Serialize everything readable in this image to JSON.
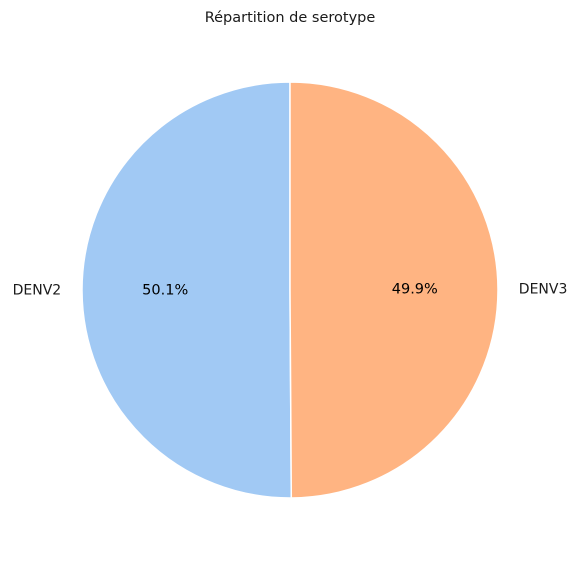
{
  "chart_data": {
    "type": "pie",
    "title": "Répartition de serotype",
    "labels": [
      "DENV2",
      "DENV3"
    ],
    "values": [
      50.1,
      49.9
    ],
    "percent_labels": [
      "50.1%",
      "49.9%"
    ],
    "colors": [
      "#a1c9f4",
      "#ffb482"
    ],
    "slice_edge_color": "#ffffff",
    "start_angle_deg": 90,
    "direction": "counterclockwise",
    "legend": "none"
  }
}
